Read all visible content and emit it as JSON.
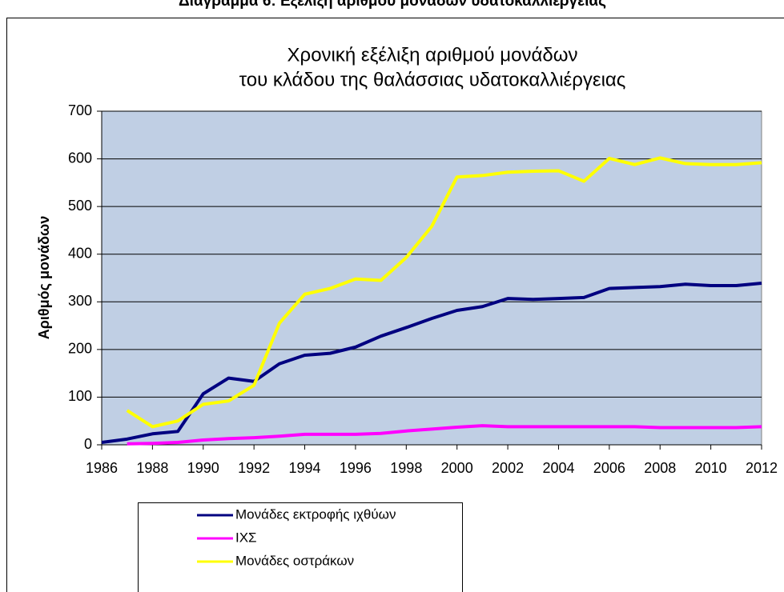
{
  "header": "Διάγραμμα 6: Εξέλιξη αριθμού μονάδων υδατοκαλλιέργειας",
  "chart_data": {
    "type": "line",
    "title": [
      "Χρονική εξέλιξη αριθμού μονάδων",
      "του κλάδου της θαλάσσιας υδατοκαλλιέργειας"
    ],
    "y_label": "Αριθμός μονάδων",
    "x": [
      1986,
      1987,
      1988,
      1989,
      1990,
      1991,
      1992,
      1993,
      1994,
      1995,
      1996,
      1997,
      1998,
      1999,
      2000,
      2001,
      2002,
      2003,
      2004,
      2005,
      2006,
      2007,
      2008,
      2009,
      2010,
      2011,
      2012
    ],
    "series": [
      {
        "name": "Μονάδες εκτροφής ιχθύων",
        "color": "#000080",
        "values": [
          5,
          12,
          23,
          28,
          107,
          140,
          133,
          170,
          188,
          192,
          205,
          228,
          246,
          265,
          282,
          290,
          307,
          305,
          307,
          309,
          328,
          330,
          332,
          337,
          334,
          334,
          339
        ]
      },
      {
        "name": "ΙΧΣ",
        "color": "#ff00ff",
        "values": [
          null,
          2,
          3,
          5,
          10,
          13,
          15,
          18,
          22,
          22,
          22,
          24,
          29,
          33,
          37,
          40,
          38,
          38,
          38,
          38,
          38,
          38,
          36,
          36,
          36,
          36,
          38
        ]
      },
      {
        "name": "Μονάδες οστράκων",
        "color": "#ffff00",
        "values": [
          null,
          72,
          38,
          50,
          85,
          92,
          125,
          255,
          316,
          328,
          348,
          345,
          393,
          458,
          562,
          565,
          572,
          574,
          575,
          553,
          601,
          588,
          602,
          590,
          588,
          588,
          592
        ]
      }
    ],
    "xlim": [
      1986,
      2012
    ],
    "xticks": [
      1986,
      1988,
      1990,
      1992,
      1994,
      1996,
      1998,
      2000,
      2002,
      2004,
      2006,
      2008,
      2010,
      2012
    ],
    "ylim": [
      0,
      700
    ],
    "yticks": [
      0,
      100,
      200,
      300,
      400,
      500,
      600,
      700
    ],
    "grid": true,
    "plot_background": "#c0cfe4"
  }
}
